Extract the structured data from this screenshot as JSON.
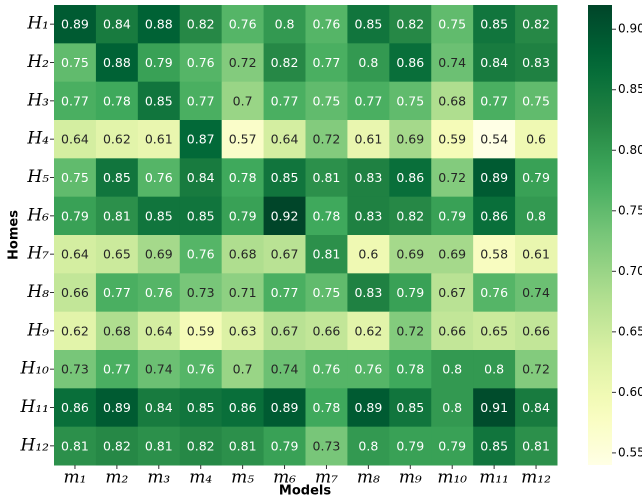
{
  "chart_data": {
    "type": "heatmap",
    "xlabel": "Models",
    "ylabel": "Homes",
    "x_categories": [
      "m₁",
      "m₂",
      "m₃",
      "m₄",
      "m₅",
      "m₆",
      "m₇",
      "m₈",
      "m₉",
      "m₁₀",
      "m₁₁",
      "m₁₂"
    ],
    "y_categories": [
      "H₁",
      "H₂",
      "H₃",
      "H₄",
      "H₅",
      "H₆",
      "H₇",
      "H₈",
      "H₉",
      "H₁₀",
      "H₁₁",
      "H₁₂"
    ],
    "values": [
      [
        0.89,
        0.84,
        0.88,
        0.82,
        0.76,
        0.8,
        0.76,
        0.85,
        0.82,
        0.75,
        0.85,
        0.82
      ],
      [
        0.75,
        0.88,
        0.79,
        0.76,
        0.72,
        0.82,
        0.77,
        0.8,
        0.86,
        0.74,
        0.84,
        0.83
      ],
      [
        0.77,
        0.78,
        0.85,
        0.77,
        0.7,
        0.77,
        0.75,
        0.77,
        0.75,
        0.68,
        0.77,
        0.75
      ],
      [
        0.64,
        0.62,
        0.61,
        0.87,
        0.57,
        0.64,
        0.72,
        0.61,
        0.69,
        0.59,
        0.54,
        0.6
      ],
      [
        0.75,
        0.85,
        0.76,
        0.84,
        0.78,
        0.85,
        0.81,
        0.83,
        0.86,
        0.72,
        0.89,
        0.79
      ],
      [
        0.79,
        0.81,
        0.85,
        0.85,
        0.79,
        0.92,
        0.78,
        0.83,
        0.82,
        0.79,
        0.86,
        0.8
      ],
      [
        0.64,
        0.65,
        0.69,
        0.76,
        0.68,
        0.67,
        0.81,
        0.6,
        0.69,
        0.69,
        0.58,
        0.61
      ],
      [
        0.66,
        0.77,
        0.76,
        0.73,
        0.71,
        0.77,
        0.75,
        0.83,
        0.79,
        0.67,
        0.76,
        0.74
      ],
      [
        0.62,
        0.68,
        0.64,
        0.59,
        0.63,
        0.67,
        0.66,
        0.62,
        0.72,
        0.66,
        0.65,
        0.66
      ],
      [
        0.73,
        0.77,
        0.74,
        0.76,
        0.7,
        0.74,
        0.76,
        0.76,
        0.78,
        0.8,
        0.8,
        0.72
      ],
      [
        0.86,
        0.89,
        0.84,
        0.85,
        0.86,
        0.89,
        0.78,
        0.89,
        0.85,
        0.8,
        0.91,
        0.84
      ],
      [
        0.81,
        0.82,
        0.81,
        0.82,
        0.81,
        0.79,
        0.73,
        0.8,
        0.79,
        0.79,
        0.85,
        0.81
      ]
    ],
    "colormap": "YlGn",
    "zlim": [
      0.54,
      0.92
    ],
    "zticks": [
      0.55,
      {
        "value": 0.6,
        "label": "0.60"
      },
      0.65,
      {
        "value": 0.7,
        "label": "0.70"
      },
      0.75,
      {
        "value": 0.8,
        "label": "0.80"
      },
      0.85,
      {
        "value": 0.9,
        "label": "0.90"
      }
    ]
  }
}
